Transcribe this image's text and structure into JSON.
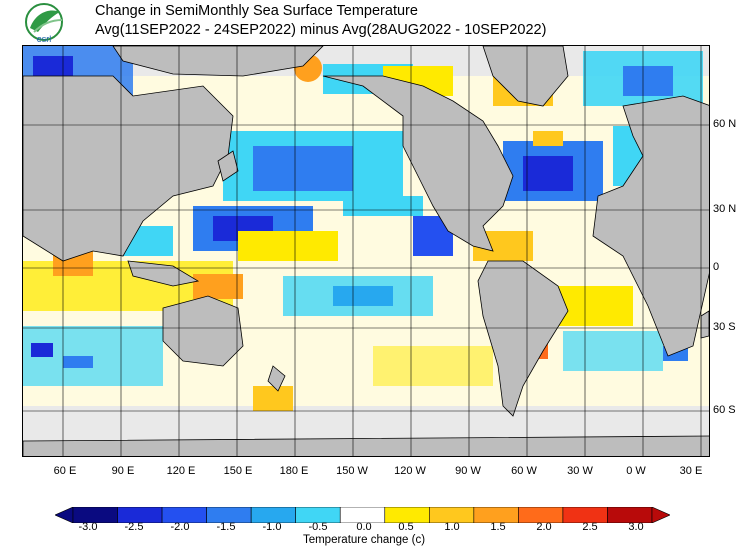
{
  "header": {
    "title_line1": "Change in SemiMonthly Sea Surface Temperature",
    "title_line2": "Avg(11SEP2022 - 24SEP2022) minus Avg(28AUG2022 - 10SEP2022)",
    "logo_text": "esrl"
  },
  "map": {
    "longitude_labels": [
      "60 E",
      "90 E",
      "120 E",
      "150 E",
      "180 E",
      "150 W",
      "120 W",
      "90 W",
      "60 W",
      "30 W",
      "0 W",
      "30 E"
    ],
    "latitude_labels": [
      "60 N",
      "30 N",
      "0",
      "30 S",
      "60 S"
    ]
  },
  "colorbar": {
    "tick_labels": [
      "-3.0",
      "-2.5",
      "-2.0",
      "-1.5",
      "-1.0",
      "-0.5",
      "0.0",
      "0.5",
      "1.0",
      "1.5",
      "2.0",
      "2.5",
      "3.0"
    ],
    "title": "Temperature change  (c)",
    "colors": [
      "#0a0a80",
      "#1a2ad8",
      "#2450f0",
      "#2f7df0",
      "#27a8ef",
      "#40d6f5",
      "#ffffff",
      "#ffea00",
      "#ffc81e",
      "#ffa01e",
      "#ff6b1a",
      "#f03214",
      "#b80a0a"
    ]
  }
}
